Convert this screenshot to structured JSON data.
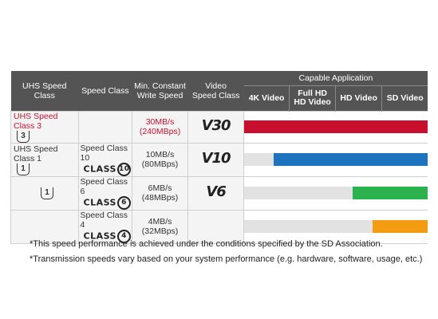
{
  "header": {
    "uhs": "UHS Speed Class",
    "speed_class": "Speed Class",
    "min_write_1": "Min. Constant",
    "min_write_2": "Write Speed",
    "video_1": "Video",
    "video_2": "Speed Class",
    "capable": "Capable Application",
    "apps": [
      "4K Video",
      "Full HD",
      "HD Video",
      "HD Video",
      "SD Video"
    ],
    "app_4k": "4K Video",
    "app_fhd_1": "Full HD",
    "app_fhd_2": "HD Video",
    "app_hd": "HD Video",
    "app_sd": "SD Video"
  },
  "rows": [
    {
      "uhs": "UHS Speed Class 3",
      "uhs_badge": "3",
      "speed_class": "",
      "class_num": "",
      "speed_1": "30MB/s",
      "speed_2": "(240MBps)",
      "video": "V30",
      "bar_color": "#c8102e",
      "bar_from": 0.0
    },
    {
      "uhs": "UHS Speed Class 1",
      "uhs_badge": "1",
      "speed_class": "Speed Class 10",
      "class_num": "10",
      "speed_1": "10MB/s",
      "speed_2": "(80MBps)",
      "video": "V10",
      "bar_color": "#1e73be",
      "bar_from": 0.16
    },
    {
      "uhs": "",
      "uhs_badge": "1",
      "speed_class": "Speed Class 6",
      "class_num": "6",
      "speed_1": "6MB/s",
      "speed_2": "(48MBps)",
      "video": "V6",
      "bar_color": "#2bb24c",
      "bar_from": 0.59
    },
    {
      "uhs": "",
      "uhs_badge": "",
      "speed_class": "Speed Class 4",
      "class_num": "4",
      "speed_1": "4MB/s",
      "speed_2": "(32MBps)",
      "video": "",
      "bar_color": "#f39c12",
      "bar_from": 0.7
    }
  ],
  "class_word": "CLASS",
  "notes": [
    "*This speed performance is achieved under the conditions specified by the SD Association.",
    "*Transmission speeds vary based on your system performance (e.g. hardware, software, usage, etc.)"
  ]
}
